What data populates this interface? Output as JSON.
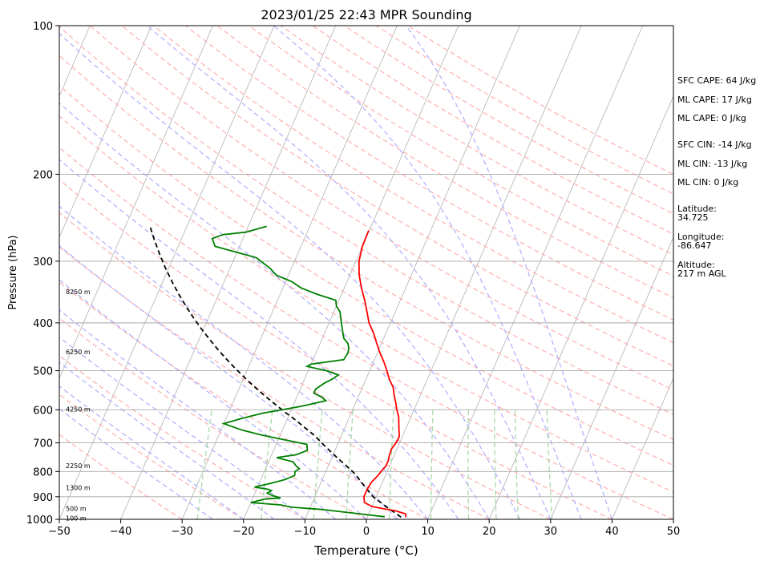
{
  "chart_data": {
    "type": "line",
    "title": "2023/01/25 22:43 MPR Sounding",
    "xlabel": "Temperature (°C)",
    "ylabel": "Pressure (hPa)",
    "xlim": [
      -50,
      50
    ],
    "ylim": [
      1000,
      100
    ],
    "y_scale": "log",
    "x_ticks": [
      "−50",
      "−40",
      "−30",
      "−20",
      "−10",
      "0",
      "10",
      "20",
      "30",
      "40",
      "50"
    ],
    "y_ticks": [
      {
        "p": 100,
        "label": "100"
      },
      {
        "p": 200,
        "label": "200"
      },
      {
        "p": 300,
        "label": "300"
      },
      {
        "p": 400,
        "label": "400"
      },
      {
        "p": 500,
        "label": "500"
      },
      {
        "p": 600,
        "label": "600"
      },
      {
        "p": 700,
        "label": "700"
      },
      {
        "p": 800,
        "label": "800"
      },
      {
        "p": 900,
        "label": "900"
      },
      {
        "p": 1000,
        "label": "1000"
      }
    ],
    "height_labels": [
      {
        "p": 995,
        "label": "100 m"
      },
      {
        "p": 950,
        "label": "500 m"
      },
      {
        "p": 862,
        "label": "1300 m"
      },
      {
        "p": 778,
        "label": "2250 m"
      },
      {
        "p": 598,
        "label": "4250 m"
      },
      {
        "p": 458,
        "label": "6250 m"
      },
      {
        "p": 346,
        "label": "8250 m"
      }
    ],
    "temperature": {
      "color": "#ff0000",
      "points": [
        [
          6.3,
          990
        ],
        [
          6.0,
          975
        ],
        [
          4.0,
          960
        ],
        [
          2.0,
          952
        ],
        [
          0.0,
          942
        ],
        [
          -1.5,
          925
        ],
        [
          -2.0,
          900
        ],
        [
          -2.0,
          870
        ],
        [
          -1.8,
          840
        ],
        [
          -1.2,
          815
        ],
        [
          -1.0,
          800
        ],
        [
          -0.6,
          780
        ],
        [
          -0.6,
          760
        ],
        [
          -0.8,
          740
        ],
        [
          -0.9,
          720
        ],
        [
          -0.6,
          700
        ],
        [
          -0.5,
          680
        ],
        [
          -1.0,
          660
        ],
        [
          -1.5,
          640
        ],
        [
          -2.0,
          620
        ],
        [
          -2.8,
          600
        ],
        [
          -3.5,
          580
        ],
        [
          -4.3,
          560
        ],
        [
          -5.0,
          540
        ],
        [
          -6.2,
          520
        ],
        [
          -7.2,
          500
        ],
        [
          -8.3,
          480
        ],
        [
          -9.6,
          460
        ],
        [
          -10.8,
          440
        ],
        [
          -12.0,
          420
        ],
        [
          -13.5,
          400
        ],
        [
          -14.6,
          380
        ],
        [
          -15.8,
          360
        ],
        [
          -17.2,
          340
        ],
        [
          -18.5,
          320
        ],
        [
          -19.5,
          300
        ],
        [
          -20.0,
          280
        ],
        [
          -20.1,
          260
        ]
      ]
    },
    "dewpoint": {
      "color": "#008000",
      "points": [
        [
          2.8,
          988
        ],
        [
          -3.0,
          970
        ],
        [
          -8.0,
          955
        ],
        [
          -13.0,
          945
        ],
        [
          -15.0,
          935
        ],
        [
          -20.0,
          925
        ],
        [
          -18.0,
          910
        ],
        [
          -15.5,
          905
        ],
        [
          -17.0,
          895
        ],
        [
          -18.0,
          885
        ],
        [
          -17.5,
          875
        ],
        [
          -18.0,
          870
        ],
        [
          -20.5,
          860
        ],
        [
          -18.0,
          845
        ],
        [
          -16.0,
          830
        ],
        [
          -14.8,
          815
        ],
        [
          -15.0,
          800
        ],
        [
          -14.5,
          790
        ],
        [
          -15.2,
          780
        ],
        [
          -16.0,
          765
        ],
        [
          -19.0,
          750
        ],
        [
          -16.0,
          740
        ],
        [
          -14.5,
          725
        ],
        [
          -15.0,
          705
        ],
        [
          -19.0,
          690
        ],
        [
          -23.0,
          675
        ],
        [
          -26.5,
          660
        ],
        [
          -30.0,
          640
        ],
        [
          -27.5,
          625
        ],
        [
          -24.5,
          610
        ],
        [
          -18.5,
          590
        ],
        [
          -15.0,
          575
        ],
        [
          -16.0,
          565
        ],
        [
          -17.5,
          555
        ],
        [
          -17.5,
          545
        ],
        [
          -16.5,
          530
        ],
        [
          -15.5,
          520
        ],
        [
          -14.8,
          510
        ],
        [
          -17.0,
          500
        ],
        [
          -20.5,
          490
        ],
        [
          -20.0,
          485
        ],
        [
          -15.0,
          475
        ],
        [
          -14.8,
          460
        ],
        [
          -15.0,
          450
        ],
        [
          -15.5,
          440
        ],
        [
          -16.5,
          430
        ],
        [
          -17.0,
          420
        ],
        [
          -17.5,
          410
        ],
        [
          -18.0,
          400
        ],
        [
          -19.0,
          380
        ],
        [
          -20.0,
          370
        ],
        [
          -20.5,
          360
        ],
        [
          -24.0,
          350
        ],
        [
          -27.0,
          340
        ],
        [
          -29.0,
          330
        ],
        [
          -32.0,
          320
        ],
        [
          -33.5,
          310
        ],
        [
          -35.5,
          300
        ],
        [
          -36.5,
          295
        ],
        [
          -39.0,
          290
        ],
        [
          -44.0,
          280
        ],
        [
          -45.0,
          270
        ],
        [
          -43.5,
          265
        ],
        [
          -40.0,
          262
        ],
        [
          -37.0,
          255
        ]
      ]
    },
    "parcel": {
      "color": "#000000",
      "style": "dashed",
      "points": [
        [
          5.5,
          990
        ],
        [
          3.5,
          960
        ],
        [
          1.5,
          930
        ],
        [
          -0.5,
          900
        ],
        [
          -2.0,
          870
        ],
        [
          -3.5,
          840
        ],
        [
          -5.0,
          810
        ],
        [
          -7.0,
          780
        ],
        [
          -9.5,
          745
        ],
        [
          -12.0,
          710
        ],
        [
          -14.5,
          675
        ],
        [
          -16.7,
          650
        ],
        [
          -18.5,
          630
        ],
        [
          -20.5,
          610
        ],
        [
          -22.5,
          590
        ],
        [
          -24.5,
          570
        ],
        [
          -26.5,
          550
        ],
        [
          -28.5,
          530
        ],
        [
          -30.5,
          510
        ],
        [
          -32.5,
          490
        ],
        [
          -34.5,
          470
        ],
        [
          -36.5,
          450
        ],
        [
          -38.5,
          430
        ],
        [
          -40.5,
          410
        ],
        [
          -42.5,
          390
        ],
        [
          -44.5,
          370
        ],
        [
          -46.5,
          350
        ],
        [
          -48.5,
          330
        ],
        [
          -50.5,
          310
        ],
        [
          -52.5,
          290
        ],
        [
          -54.5,
          270
        ],
        [
          -56.0,
          255
        ]
      ]
    },
    "skew_factor": 35,
    "background_lines": {
      "isotherm_color": "#b0b0b0",
      "dry_adiabat_color": "#ffb3b3",
      "moist_adiabat_color": "#b3b3ff",
      "mixing_ratio_color": "#a6d9a6",
      "extra_adiabat_color": "#d9a6d9"
    },
    "indices": {
      "sfc_cape": "SFC CAPE: 64 J/kg",
      "ml_cape_1": "ML CAPE: 17 J/kg",
      "ml_cape_2": "ML CAPE: 0 J/kg",
      "sfc_cin": "SFC CIN: -14 J/kg",
      "ml_cin_1": "ML CIN: -13 J/kg",
      "ml_cin_2": "ML CIN: 0 J/kg",
      "latitude_label": "Latitude:",
      "latitude_value": "34.725",
      "longitude_label": "Longitude:",
      "longitude_value": "-86.647",
      "altitude_label": "Altitude:",
      "altitude_value": "217 m AGL"
    }
  }
}
